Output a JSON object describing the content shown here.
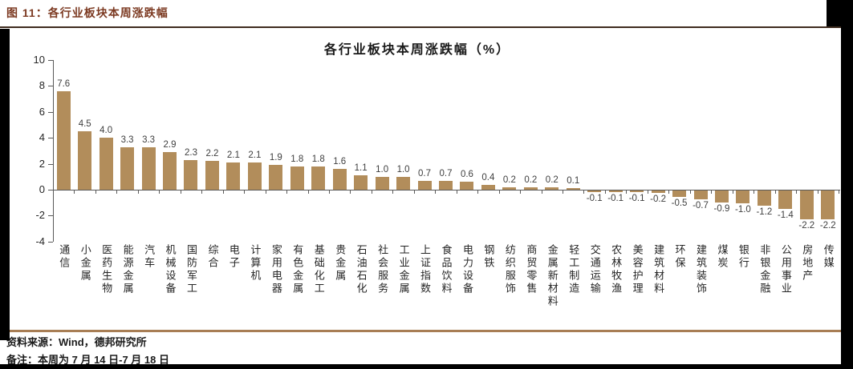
{
  "figure": {
    "label": "图 11：各行业板块本周涨跌幅"
  },
  "footer": {
    "source": "资料来源：Wind，德邦研究所",
    "note": "备注：本周为 7 月 14 日-7 月 18 日"
  },
  "colors": {
    "bar": "#B28D5B",
    "header_text": "#7C3A22",
    "header_rule": "#3E2B1E",
    "footer_rule": "#A87E55",
    "axis": "#595959",
    "value_label": "#404040"
  },
  "chart_data": {
    "type": "bar",
    "title": "各行业板块本周涨跌幅（%）",
    "xlabel": "",
    "ylabel": "",
    "ylim": [
      -4,
      10
    ],
    "yticks": [
      10,
      8,
      6,
      4,
      2,
      0,
      -2,
      -4
    ],
    "grid": false,
    "legend": "none",
    "categories": [
      "通信",
      "小金属",
      "医药生物",
      "能源金属",
      "汽车",
      "机械设备",
      "国防军工",
      "综合",
      "电子",
      "计算机",
      "家用电器",
      "有色金属",
      "基础化工",
      "贵金属",
      "石油石化",
      "社会服务",
      "工业金属",
      "上证指数",
      "食品饮料",
      "电力设备",
      "钢铁",
      "纺织服饰",
      "商贸零售",
      "金属新材料",
      "轻工制造",
      "交通运输",
      "农林牧渔",
      "美容护理",
      "建筑材料",
      "环保",
      "建筑装饰",
      "煤炭",
      "银行",
      "非银金融",
      "公用事业",
      "房地产",
      "传媒"
    ],
    "values": [
      7.6,
      4.5,
      4.0,
      3.3,
      3.3,
      2.9,
      2.3,
      2.2,
      2.1,
      2.1,
      1.9,
      1.8,
      1.8,
      1.6,
      1.1,
      1.0,
      1.0,
      0.7,
      0.7,
      0.6,
      0.4,
      0.2,
      0.2,
      0.2,
      0.1,
      -0.1,
      -0.1,
      -0.1,
      -0.2,
      -0.5,
      -0.7,
      -0.9,
      -1.0,
      -1.2,
      -1.4,
      -2.2,
      -2.2
    ]
  }
}
